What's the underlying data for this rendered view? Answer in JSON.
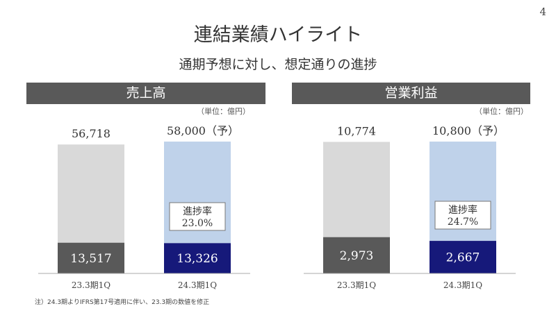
{
  "page_number": "4",
  "title": "連結業績ハイライト",
  "subtitle": "通期予想に対し、想定通りの進捗",
  "note": "注）24.3期よりIFRS第17号適用に伴い、23.3期の数値を修正",
  "colors": {
    "header": "#595959",
    "prev_total": "#d9d9d9",
    "prev_q": "#595959",
    "curr_total": "#bfd2ea",
    "curr_q": "#16197a"
  },
  "chart_data": [
    {
      "type": "bar",
      "title": "売上高",
      "unit": "（単位：億円）",
      "categories": [
        "23.3期1Q",
        "24.3期1Q"
      ],
      "totals": [
        56718,
        58000
      ],
      "total_labels": [
        "56,718",
        "58,000（予）"
      ],
      "q1_values": [
        13517,
        13326
      ],
      "q1_labels": [
        "13,517",
        "13,326"
      ],
      "progress_label": "進捗率",
      "progress_value": "23.0%"
    },
    {
      "type": "bar",
      "title": "営業利益",
      "unit": "（単位：億円）",
      "categories": [
        "23.3期1Q",
        "24.3期1Q"
      ],
      "totals": [
        10774,
        10800
      ],
      "total_labels": [
        "10,774",
        "10,800（予）"
      ],
      "q1_values": [
        2973,
        2667
      ],
      "q1_labels": [
        "2,973",
        "2,667"
      ],
      "progress_label": "進捗率",
      "progress_value": "24.7%"
    }
  ]
}
